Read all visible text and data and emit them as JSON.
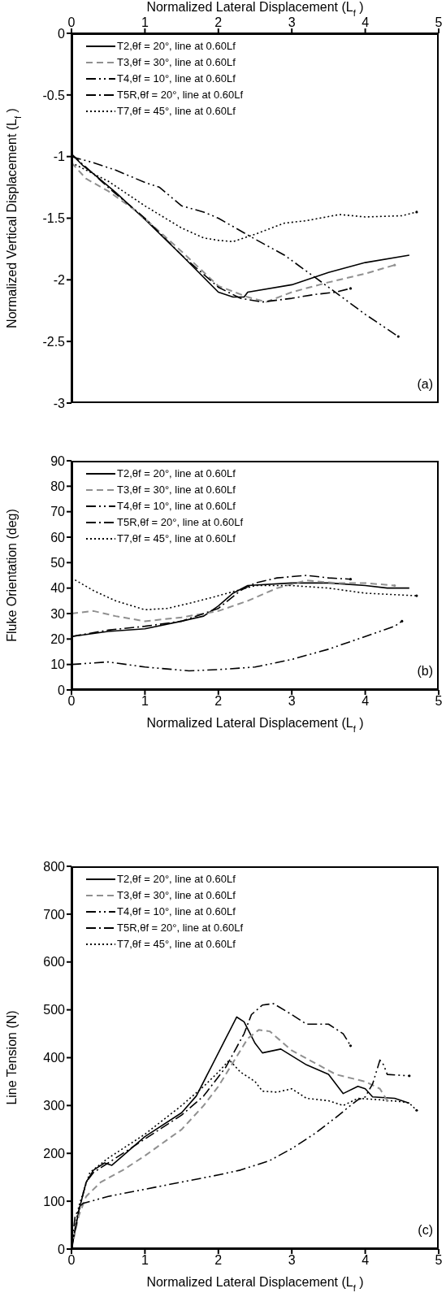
{
  "chart_data": [
    {
      "type": "line",
      "xlabel": "Normalized  Lateral Displacement (L$_{f}$)",
      "ylabel": "Normalized  Vertical Displacement (L$_{f}$)",
      "xlim": [
        0,
        5
      ],
      "xticks": [
        0,
        1,
        2,
        3,
        4,
        5
      ],
      "ylim": [
        -3,
        0
      ],
      "yticks": [
        -3,
        -2.5,
        -2,
        -1.5,
        -1,
        -0.5,
        0
      ],
      "legend": "top left",
      "annotations": [
        "(a)"
      ],
      "series": [
        {
          "name": "T2,θf = 20°, line at 0.60Lf",
          "color": "#000000",
          "line_style": "solid",
          "x": [
            0,
            0.15,
            0.3,
            0.6,
            1.0,
            1.5,
            2.0,
            2.2,
            2.35,
            2.4,
            3.0,
            3.5,
            4.0,
            4.6
          ],
          "values": [
            -0.98,
            -1.07,
            -1.14,
            -1.29,
            -1.51,
            -1.8,
            -2.1,
            -2.14,
            -2.14,
            -2.1,
            -2.04,
            -1.94,
            -1.86,
            -1.8
          ]
        },
        {
          "name": "T3,θf = 30°, line at 0.60Lf",
          "color": "#909090",
          "line_style": "dashed",
          "x": [
            0,
            0.2,
            0.5,
            0.9,
            1.5,
            2.0,
            2.4,
            2.65,
            3.0,
            3.5,
            4.0,
            4.4
          ],
          "values": [
            -1.05,
            -1.18,
            -1.28,
            -1.45,
            -1.77,
            -2.05,
            -2.14,
            -2.18,
            -2.1,
            -2.02,
            -1.95,
            -1.88
          ]
        },
        {
          "name": "T4,θf = 10°, line at 0.60Lf",
          "color": "#000000",
          "line_style": "dashdotdot",
          "x": [
            0,
            0.3,
            0.6,
            1.0,
            1.2,
            1.5,
            1.8,
            2.0,
            2.5,
            2.9,
            3.5,
            4.0,
            4.45
          ],
          "values": [
            -1.0,
            -1.05,
            -1.11,
            -1.21,
            -1.25,
            -1.4,
            -1.45,
            -1.5,
            -1.67,
            -1.8,
            -2.06,
            -2.28,
            -2.46
          ]
        },
        {
          "name": "T5R,θf = 20°, line at 0.60Lf",
          "color": "#000000",
          "line_style": "dashdot",
          "x": [
            0,
            0.5,
            1.0,
            1.5,
            2.0,
            2.3,
            2.6,
            3.0,
            3.3,
            3.6,
            3.8
          ],
          "values": [
            -0.98,
            -1.25,
            -1.5,
            -1.8,
            -2.06,
            -2.15,
            -2.18,
            -2.15,
            -2.12,
            -2.1,
            -2.07
          ]
        },
        {
          "name": "T7,θf = 45°, line at 0.60Lf",
          "color": "#000000",
          "line_style": "dotted",
          "x": [
            0,
            0.5,
            1.0,
            1.5,
            1.8,
            2.0,
            2.2,
            2.5,
            2.9,
            3.2,
            3.65,
            4.0,
            4.5,
            4.7
          ],
          "values": [
            -1.05,
            -1.2,
            -1.4,
            -1.58,
            -1.66,
            -1.68,
            -1.69,
            -1.63,
            -1.54,
            -1.52,
            -1.47,
            -1.49,
            -1.48,
            -1.45
          ]
        }
      ]
    },
    {
      "type": "line",
      "xlabel": "Normalized  Lateral Displacement (L$_{f}$)",
      "ylabel": "Fluke Orientation (deg)",
      "xlim": [
        0,
        5
      ],
      "xticks": [
        0,
        1,
        2,
        3,
        4,
        5
      ],
      "ylim": [
        0,
        90
      ],
      "yticks": [
        0,
        10,
        20,
        30,
        40,
        50,
        60,
        70,
        80,
        90
      ],
      "legend": "top left",
      "annotations": [
        "(b)"
      ],
      "series": [
        {
          "name": "T2,θf = 20°, line at 0.60Lf",
          "color": "#000000",
          "line_style": "solid",
          "x": [
            0,
            0.5,
            1.0,
            1.5,
            1.8,
            2.0,
            2.2,
            2.4,
            3.0,
            3.5,
            4.0,
            4.3,
            4.6
          ],
          "values": [
            21,
            23,
            24,
            27,
            29,
            33,
            38,
            41,
            42,
            42,
            41,
            40,
            40
          ]
        },
        {
          "name": "T3,θf = 30°, line at 0.60Lf",
          "color": "#909090",
          "line_style": "dashed",
          "x": [
            0,
            0.3,
            0.6,
            1.0,
            1.5,
            2.0,
            2.4,
            2.8,
            3.2,
            3.6,
            4.0,
            4.4
          ],
          "values": [
            30,
            31,
            29,
            27,
            28.5,
            31,
            35,
            40,
            43,
            42,
            42,
            41
          ]
        },
        {
          "name": "T4,θf = 10°, line at 0.60Lf",
          "color": "#000000",
          "line_style": "dashdotdot",
          "x": [
            0,
            0.5,
            1.0,
            1.6,
            2.0,
            2.5,
            3.0,
            3.5,
            4.0,
            4.4,
            4.5
          ],
          "values": [
            10,
            11,
            9,
            7.5,
            8,
            9,
            12,
            16,
            21,
            25,
            27
          ]
        },
        {
          "name": "T5R,θf = 20°, line at 0.60Lf",
          "color": "#000000",
          "line_style": "dashdot",
          "x": [
            0,
            0.5,
            1.0,
            1.5,
            2.0,
            2.3,
            2.5,
            2.8,
            3.2,
            3.5,
            3.8
          ],
          "values": [
            21,
            23.5,
            25,
            27,
            32,
            39,
            42,
            44,
            45,
            44,
            43.5
          ]
        },
        {
          "name": "T7,θf = 45°, line at 0.60Lf",
          "color": "#000000",
          "line_style": "dotted",
          "x": [
            0,
            0.3,
            0.6,
            1.0,
            1.3,
            1.6,
            2.0,
            2.5,
            3.0,
            3.5,
            4.0,
            4.7
          ],
          "values": [
            44,
            39,
            35,
            31.5,
            32,
            34,
            37,
            41,
            41,
            40,
            38,
            37
          ]
        }
      ]
    },
    {
      "type": "line",
      "xlabel": "Normalized  Lateral Displacement (L$_{f}$)",
      "ylabel": "Line Tension (N)",
      "xlim": [
        0,
        5
      ],
      "xticks": [
        0,
        1,
        2,
        3,
        4,
        5
      ],
      "ylim": [
        0,
        800
      ],
      "yticks": [
        0,
        100,
        200,
        300,
        400,
        500,
        600,
        700,
        800
      ],
      "legend": "top left",
      "annotations": [
        "(c)"
      ],
      "series": [
        {
          "name": "T2,θf = 20°, line at 0.60Lf",
          "color": "#000000",
          "line_style": "solid",
          "x": [
            0,
            0.1,
            0.2,
            0.3,
            0.45,
            0.55,
            0.7,
            1.0,
            1.5,
            1.7,
            1.9,
            2.1,
            2.25,
            2.35,
            2.5,
            2.6,
            2.85,
            3.2,
            3.5,
            3.7,
            3.9,
            4.0,
            4.1,
            4.4,
            4.6
          ],
          "values": [
            0,
            80,
            140,
            165,
            180,
            175,
            195,
            235,
            285,
            320,
            380,
            440,
            485,
            475,
            430,
            410,
            418,
            385,
            365,
            325,
            340,
            335,
            318,
            315,
            305
          ]
        },
        {
          "name": "T3,θf = 30°, line at 0.60Lf",
          "color": "#909090",
          "line_style": "dashed",
          "x": [
            0,
            0.1,
            0.2,
            0.4,
            0.7,
            1.0,
            1.5,
            1.8,
            2.0,
            2.2,
            2.4,
            2.55,
            2.7,
            3.0,
            3.3,
            3.6,
            4.0,
            4.2,
            4.3
          ],
          "values": [
            0,
            70,
            110,
            140,
            165,
            195,
            250,
            300,
            340,
            390,
            440,
            458,
            455,
            415,
            390,
            365,
            350,
            335,
            310
          ]
        },
        {
          "name": "T4,θf = 10°, line at 0.60Lf",
          "color": "#000000",
          "line_style": "dashdotdot",
          "x": [
            0,
            0.05,
            0.15,
            0.5,
            1.0,
            1.5,
            2.0,
            2.3,
            2.7,
            3.0,
            3.3,
            3.6,
            3.8,
            3.9,
            4.0,
            4.1,
            4.2,
            4.25,
            4.3,
            4.6
          ],
          "values": [
            0,
            70,
            95,
            110,
            125,
            140,
            155,
            165,
            185,
            210,
            240,
            275,
            300,
            312,
            318,
            345,
            395,
            385,
            365,
            362
          ]
        },
        {
          "name": "T5R,θf = 20°, line at 0.60Lf",
          "color": "#000000",
          "line_style": "dashdot",
          "x": [
            0,
            0.1,
            0.2,
            0.3,
            0.5,
            1.0,
            1.5,
            1.8,
            2.1,
            2.35,
            2.45,
            2.6,
            2.75,
            3.0,
            3.2,
            3.5,
            3.7,
            3.8
          ],
          "values": [
            0,
            80,
            140,
            160,
            180,
            230,
            280,
            320,
            380,
            450,
            490,
            510,
            513,
            490,
            470,
            470,
            450,
            425
          ]
        },
        {
          "name": "T7,θf = 45°, line at 0.60Lf",
          "color": "#000000",
          "line_style": "dotted",
          "x": [
            0,
            0.1,
            0.25,
            0.5,
            1.0,
            1.5,
            1.8,
            2.0,
            2.15,
            2.3,
            2.5,
            2.6,
            2.8,
            3.0,
            3.2,
            3.5,
            3.7,
            3.9,
            4.2,
            4.5,
            4.6,
            4.7
          ],
          "values": [
            0,
            90,
            160,
            190,
            240,
            300,
            340,
            370,
            395,
            370,
            350,
            330,
            328,
            335,
            315,
            310,
            300,
            315,
            312,
            308,
            305,
            290
          ]
        }
      ]
    }
  ]
}
